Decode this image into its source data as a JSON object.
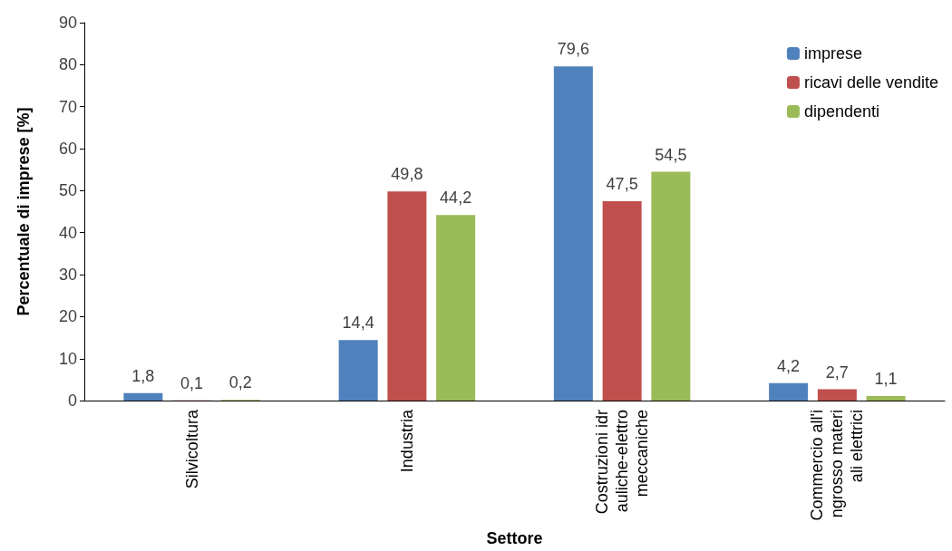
{
  "chart_data": {
    "type": "bar",
    "xlabel": "Settore",
    "ylabel": "Percentuale di imprese [%]",
    "categories": [
      "Silvicoltura",
      "Industria",
      "Costruzioni idrauliche-elettromeccaniche",
      "Commercio all'ingrosso materiali elettrici"
    ],
    "series": [
      {
        "name": "imprese",
        "color": "#4f81bd",
        "values": [
          1.8,
          14.4,
          79.6,
          4.2
        ],
        "value_labels": [
          "1,8",
          "14,4",
          "79,6",
          "4,2"
        ]
      },
      {
        "name": "ricavi delle vendite",
        "color": "#c0504d",
        "values": [
          0.1,
          49.8,
          47.5,
          2.7
        ],
        "value_labels": [
          "0,1",
          "49,8",
          "47,5",
          "2,7"
        ]
      },
      {
        "name": "dipendenti",
        "color": "#9bbb59",
        "values": [
          0.2,
          44.2,
          54.5,
          1.1
        ],
        "value_labels": [
          "0,2",
          "44,2",
          "54,5",
          "1,1"
        ]
      }
    ],
    "ylim": [
      0,
      90
    ],
    "yticks": [
      0,
      10,
      20,
      30,
      40,
      50,
      60,
      70,
      80,
      90
    ],
    "grid": false,
    "legend": "top right"
  }
}
